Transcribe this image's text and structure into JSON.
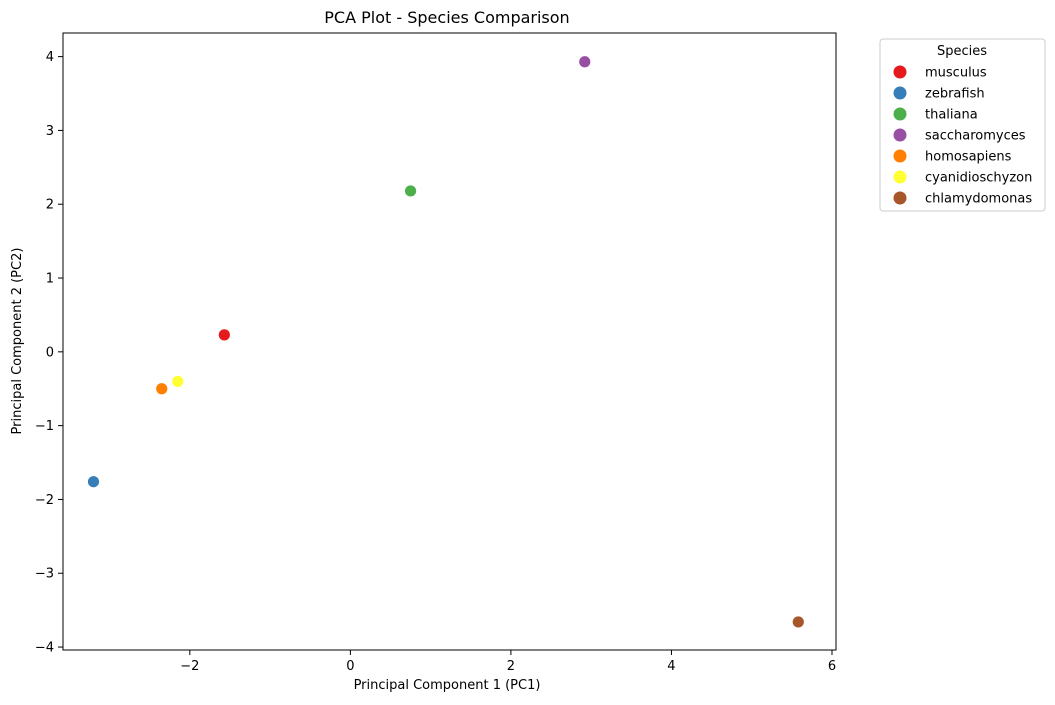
{
  "chart_data": {
    "type": "scatter",
    "title": "PCA Plot - Species Comparison",
    "xlabel": "Principal Component 1 (PC1)",
    "ylabel": "Principal Component 2 (PC2)",
    "xlim": [
      -3.58,
      6.05
    ],
    "ylim": [
      -4.04,
      4.32
    ],
    "xticks": [
      -2,
      0,
      2,
      4,
      6
    ],
    "xtick_labels": [
      "−2",
      "0",
      "2",
      "4",
      "6"
    ],
    "yticks": [
      -4,
      -3,
      -2,
      -1,
      0,
      1,
      2,
      3,
      4
    ],
    "ytick_labels": [
      "−4",
      "−3",
      "−2",
      "−1",
      "0",
      "1",
      "2",
      "3",
      "4"
    ],
    "grid": false,
    "legend": {
      "title": "Species",
      "placement": "outside-upper-right"
    },
    "series": [
      {
        "name": "musculus",
        "color": "#e41a1c",
        "x": -1.57,
        "y": 0.23
      },
      {
        "name": "zebrafish",
        "color": "#377eb8",
        "x": -3.2,
        "y": -1.76
      },
      {
        "name": "thaliana",
        "color": "#4daf4a",
        "x": 0.75,
        "y": 2.18
      },
      {
        "name": "saccharomyces",
        "color": "#984ea3",
        "x": 2.92,
        "y": 3.93
      },
      {
        "name": "homosapiens",
        "color": "#ff7f00",
        "x": -2.35,
        "y": -0.5
      },
      {
        "name": "cyanidioschyzon",
        "color": "#ffff33",
        "x": -2.15,
        "y": -0.4
      },
      {
        "name": "chlamydomonas",
        "color": "#a65628",
        "x": 5.58,
        "y": -3.66
      }
    ]
  }
}
